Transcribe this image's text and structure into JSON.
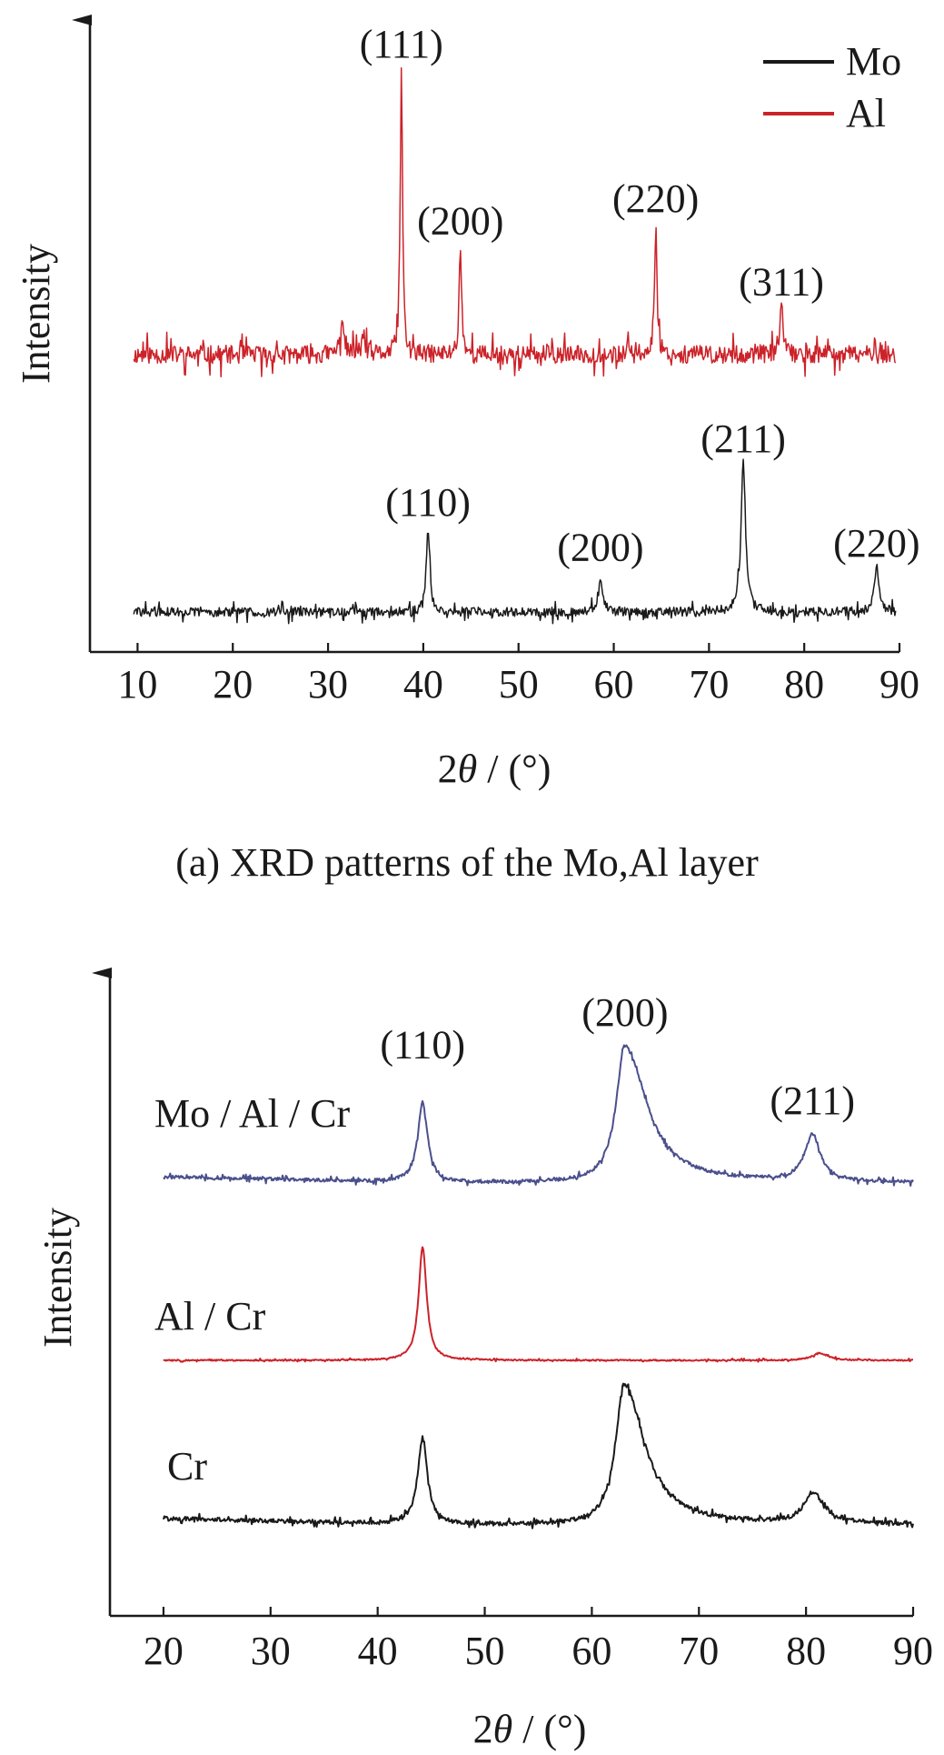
{
  "chart_data": [
    {
      "type": "line",
      "caption": "(a) XRD patterns of the Mo,Al layer",
      "xlabel_prefix": "2",
      "xlabel_symbol": "θ",
      "xlabel_unit": " / (°)",
      "ylabel": "Intensity",
      "xlim": [
        5,
        90
      ],
      "x_ticks": [
        10,
        20,
        30,
        40,
        50,
        60,
        70,
        80,
        90
      ],
      "grid": false,
      "legend_position": "top-right",
      "legend": [
        {
          "name": "Mo",
          "color": "#1a1a1a"
        },
        {
          "name": "Al",
          "color": "#cc2229"
        }
      ],
      "series": [
        {
          "name": "Al",
          "color": "#cc2229",
          "noise": 0.045,
          "peaks": [
            {
              "x": 31.5,
              "h": 0.12,
              "w": 0.25
            },
            {
              "x": 33.7,
              "h": 0.07,
              "w": 0.2
            },
            {
              "x": 37.7,
              "h": 1.0,
              "w": 0.14
            },
            {
              "x": 43.9,
              "h": 0.37,
              "w": 0.16
            },
            {
              "x": 64.4,
              "h": 0.46,
              "w": 0.16
            },
            {
              "x": 77.6,
              "h": 0.17,
              "w": 0.2
            },
            {
              "x": 87.4,
              "h": 0.06,
              "w": 0.12
            }
          ],
          "peak_labels": [
            {
              "text": "(111)",
              "x": 37.7
            },
            {
              "text": "(200)",
              "x": 43.9
            },
            {
              "text": "(220)",
              "x": 64.4
            },
            {
              "text": "(311)",
              "x": 77.6
            }
          ]
        },
        {
          "name": "Mo",
          "color": "#1a1a1a",
          "noise": 0.025,
          "peaks": [
            {
              "x": 40.5,
              "h": 0.32,
              "w": 0.22
            },
            {
              "x": 58.6,
              "h": 0.14,
              "w": 0.25
            },
            {
              "x": 73.6,
              "h": 0.57,
              "w": 0.28
            },
            {
              "x": 87.6,
              "h": 0.17,
              "w": 0.3
            }
          ],
          "peak_labels": [
            {
              "text": "(110)",
              "x": 40.5
            },
            {
              "text": "(200)",
              "x": 58.6
            },
            {
              "text": "(211)",
              "x": 73.6
            },
            {
              "text": "(220)",
              "x": 87.6
            }
          ]
        }
      ]
    },
    {
      "type": "line",
      "xlabel_prefix": "2",
      "xlabel_symbol": "θ",
      "xlabel_unit": " / (°)",
      "ylabel": "Intensity",
      "xlim": [
        15,
        90
      ],
      "x_ticks": [
        20,
        30,
        40,
        50,
        60,
        70,
        80,
        90
      ],
      "grid": false,
      "series": [
        {
          "name": "Mo / Al / Cr",
          "color": "#4b4f8c",
          "noise": 0.012,
          "peaks": [
            {
              "x": 44.2,
              "h": 0.4,
              "w": 0.55
            },
            {
              "x": 63.1,
              "h": 0.68,
              "w": 1.0,
              "tail": 2.4
            },
            {
              "x": 80.6,
              "h": 0.23,
              "w": 0.9
            }
          ],
          "peak_labels": [
            {
              "text": "(110)",
              "x": 44.2
            },
            {
              "text": "(200)",
              "x": 63.1
            },
            {
              "text": "(211)",
              "x": 80.6
            }
          ]
        },
        {
          "name": "Al / Cr",
          "color": "#cc2229",
          "noise": 0.004,
          "peaks": [
            {
              "x": 44.2,
              "h": 0.47,
              "w": 0.45
            },
            {
              "x": 81.3,
              "h": 0.03,
              "w": 0.9
            }
          ]
        },
        {
          "name": "Cr",
          "color": "#1a1a1a",
          "noise": 0.014,
          "peaks": [
            {
              "x": 44.2,
              "h": 0.4,
              "w": 0.55
            },
            {
              "x": 63.0,
              "h": 0.65,
              "w": 0.95,
              "tail": 2.4
            },
            {
              "x": 80.6,
              "h": 0.14,
              "w": 1.0,
              "tail": 1.3
            }
          ]
        }
      ]
    }
  ]
}
